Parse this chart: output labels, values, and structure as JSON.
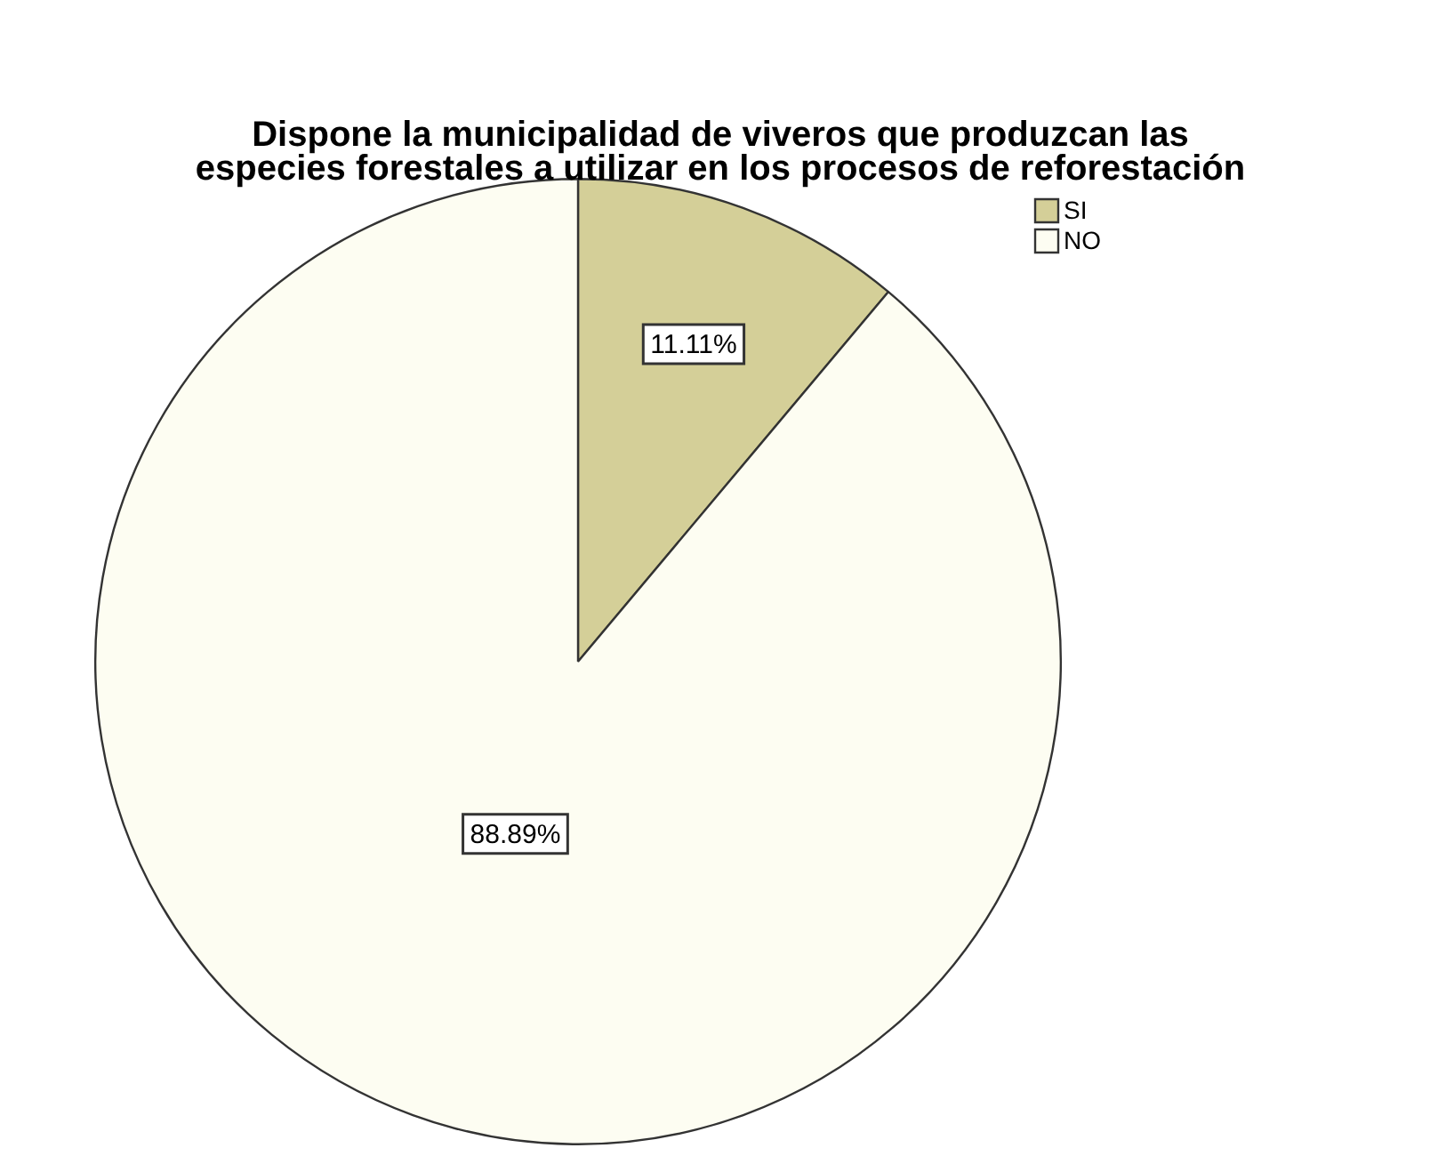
{
  "chart_data": {
    "type": "pie",
    "title": "Dispone la municipalidad de viveros que produzcan las\nespecies forestales a utilizar en los procesos de reforestación",
    "categories": [
      "SI",
      "NO"
    ],
    "values": [
      11.11,
      88.89
    ],
    "colors": [
      "#d4cf98",
      "#fdfdf2"
    ],
    "value_labels": [
      "11.11%",
      "88.89%"
    ],
    "legend": "top right"
  }
}
